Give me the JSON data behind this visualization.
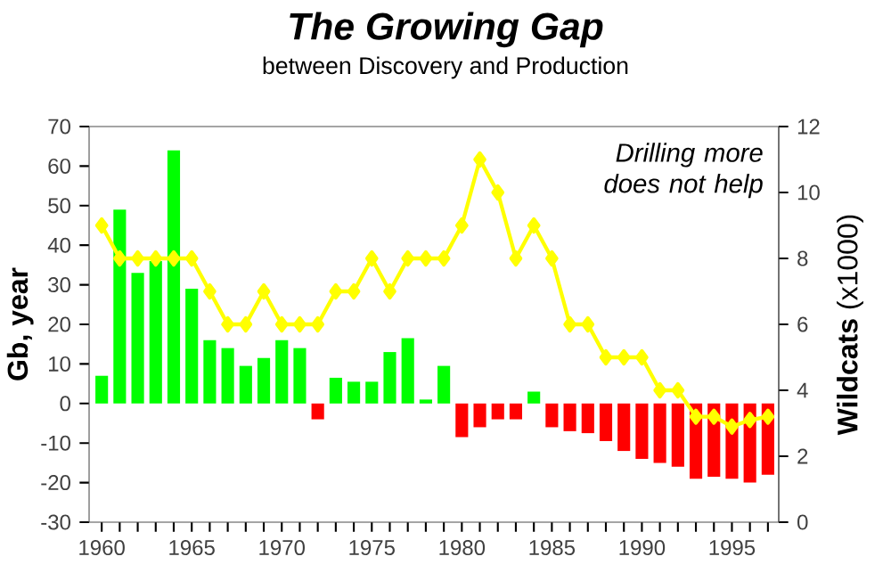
{
  "chart_data": {
    "type": "bar",
    "title": "*The Growing Gap*",
    "subtitle": "between Discovery and Production",
    "ylabel": "Gb, year",
    "y2label": "**Wildcats** (x1000)",
    "annotations": [
      "*Drilling more does not help*"
    ],
    "x": [
      1960,
      1961,
      1962,
      1963,
      1964,
      1965,
      1966,
      1967,
      1968,
      1969,
      1970,
      1971,
      1972,
      1973,
      1974,
      1975,
      1976,
      1977,
      1978,
      1979,
      1980,
      1981,
      1982,
      1983,
      1984,
      1985,
      1986,
      1987,
      1988,
      1989,
      1990,
      1991,
      1992,
      1993,
      1994,
      1995,
      1996,
      1997
    ],
    "xlim": [
      1959.3,
      1997.6
    ],
    "xticks": [
      1960,
      {
        "value": 1961,
        "label": null
      },
      {
        "value": 1962,
        "label": null
      },
      {
        "value": 1963,
        "label": null
      },
      {
        "value": 1964,
        "label": null
      },
      1965,
      {
        "value": 1966,
        "label": null
      },
      {
        "value": 1967,
        "label": null
      },
      {
        "value": 1968,
        "label": null
      },
      {
        "value": 1969,
        "label": null
      },
      1970,
      {
        "value": 1971,
        "label": null
      },
      {
        "value": 1972,
        "label": null
      },
      {
        "value": 1973,
        "label": null
      },
      {
        "value": 1974,
        "label": null
      },
      1975,
      {
        "value": 1976,
        "label": null
      },
      {
        "value": 1977,
        "label": null
      },
      {
        "value": 1978,
        "label": null
      },
      {
        "value": 1979,
        "label": null
      },
      1980,
      {
        "value": 1981,
        "label": null
      },
      {
        "value": 1982,
        "label": null
      },
      {
        "value": 1983,
        "label": null
      },
      {
        "value": 1984,
        "label": null
      },
      1985,
      {
        "value": 1986,
        "label": null
      },
      {
        "value": 1987,
        "label": null
      },
      {
        "value": 1988,
        "label": null
      },
      {
        "value": 1989,
        "label": null
      },
      1990,
      {
        "value": 1991,
        "label": null
      },
      {
        "value": 1992,
        "label": null
      },
      {
        "value": 1993,
        "label": null
      },
      {
        "value": 1994,
        "label": null
      },
      1995,
      {
        "value": 1996,
        "label": null
      },
      {
        "value": 1997,
        "label": null
      }
    ],
    "ylim": [
      -30,
      70
    ],
    "yticks": [
      -30,
      -20,
      -10,
      0,
      10,
      20,
      30,
      40,
      50,
      60,
      70
    ],
    "y2lim": [
      0,
      12
    ],
    "y2ticks": [
      0,
      2,
      4,
      6,
      8,
      10,
      12
    ],
    "series": [
      {
        "values": [
          7,
          49,
          33,
          36,
          64,
          29,
          16,
          14,
          9.5,
          11.5,
          16,
          14,
          -4,
          6.5,
          5.5,
          5.5,
          13,
          16.5,
          1,
          9.5,
          -8.5,
          -6,
          -4,
          -4,
          3,
          -6,
          -7,
          -7.5,
          -9.5,
          -12,
          -14,
          -15,
          -16,
          -19,
          -18.5,
          -19,
          -20,
          -18
        ],
        "colors": [
          "#00ff00",
          "#00ff00",
          "#00ff00",
          "#00ff00",
          "#00ff00",
          "#00ff00",
          "#00ff00",
          "#00ff00",
          "#00ff00",
          "#00ff00",
          "#00ff00",
          "#00ff00",
          "#ff0000",
          "#00ff00",
          "#00ff00",
          "#00ff00",
          "#00ff00",
          "#00ff00",
          "#00ff00",
          "#00ff00",
          "#ff0000",
          "#ff0000",
          "#ff0000",
          "#ff0000",
          "#00ff00",
          "#ff0000",
          "#ff0000",
          "#ff0000",
          "#ff0000",
          "#ff0000",
          "#ff0000",
          "#ff0000",
          "#ff0000",
          "#ff0000",
          "#ff0000",
          "#ff0000",
          "#ff0000",
          "#ff0000"
        ]
      },
      {
        "type": "line",
        "axis": "y2",
        "color": "#ffff00",
        "marker": "diamond",
        "values": [
          9,
          8,
          8,
          8,
          8,
          8,
          7,
          6,
          6,
          7,
          6,
          6,
          6,
          7,
          7,
          8,
          7,
          8,
          8,
          8,
          9,
          11,
          10,
          8,
          9,
          8,
          6,
          6,
          5,
          5,
          5,
          4,
          4,
          3.2,
          3.2,
          2.9,
          3.1,
          3.2
        ]
      }
    ]
  }
}
